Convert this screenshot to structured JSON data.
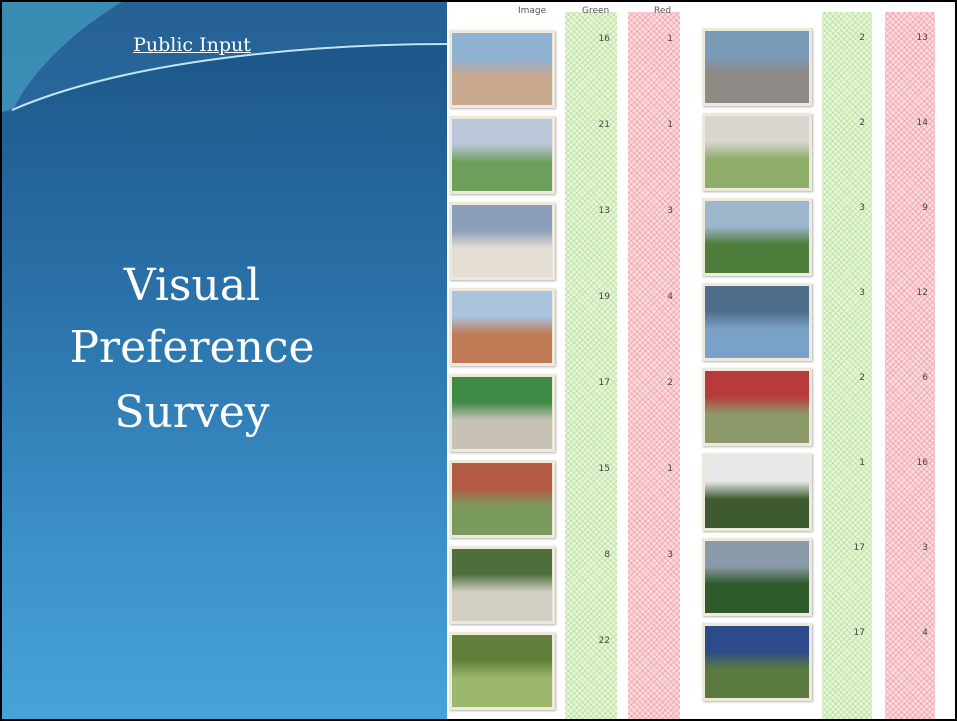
{
  "header": {
    "link": "Public Input"
  },
  "title": {
    "lines": [
      "Visual",
      "Preference",
      "Survey"
    ]
  },
  "left_table": {
    "columns": [
      "Image",
      "Green",
      "Red"
    ],
    "rows": [
      {
        "green": 16,
        "red": 1
      },
      {
        "green": 21,
        "red": 1
      },
      {
        "green": 13,
        "red": 3
      },
      {
        "green": 19,
        "red": 4
      },
      {
        "green": 17,
        "red": 2
      },
      {
        "green": 15,
        "red": 1
      },
      {
        "green": 8,
        "red": 3
      },
      {
        "green": 22
      }
    ]
  },
  "right_table": {
    "rows": [
      {
        "green": 2,
        "red": 13
      },
      {
        "green": 2,
        "red": 14
      },
      {
        "green": 3,
        "red": 9
      },
      {
        "green": 3,
        "red": 12
      },
      {
        "green": 2,
        "red": 6
      },
      {
        "green": 1,
        "red": 16
      },
      {
        "green": 17,
        "red": 3
      },
      {
        "green": 17,
        "red": 4
      }
    ]
  }
}
